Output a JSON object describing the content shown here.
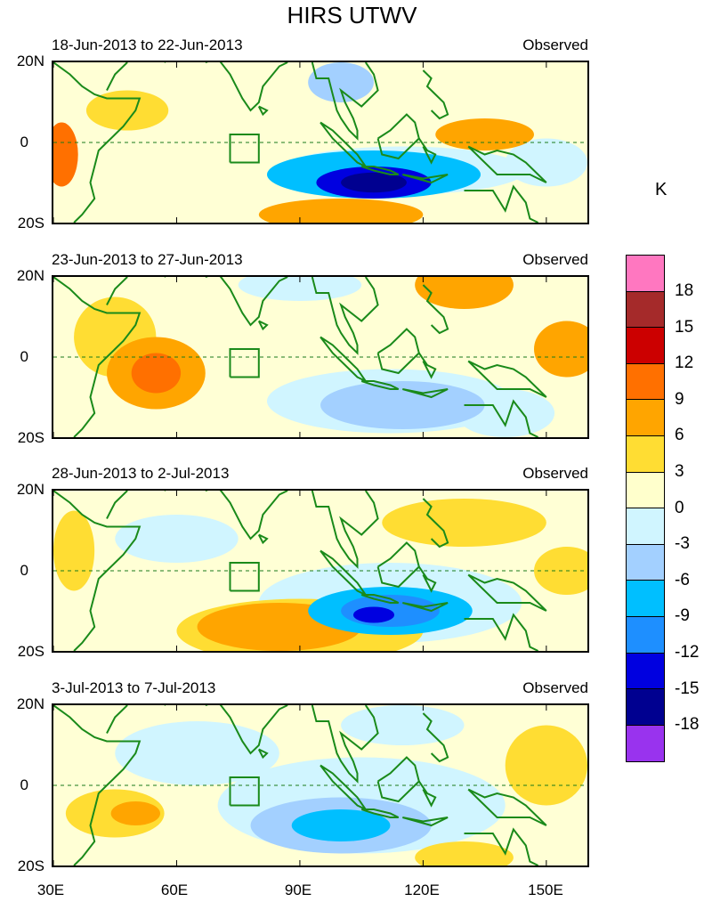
{
  "title": "HIRS UTWV",
  "unit": "K",
  "panels": [
    {
      "date_range": "18-Jun-2013 to 22-Jun-2013",
      "label": "Observed",
      "blobs": [
        {
          "cx": 108,
          "cy": -10,
          "rx": 14,
          "ry": 4,
          "v": -15
        },
        {
          "cx": 108,
          "cy": -10,
          "rx": 8,
          "ry": 2.5,
          "v": -18
        },
        {
          "cx": 108,
          "cy": -8,
          "rx": 26,
          "ry": 6,
          "v": -9
        },
        {
          "cx": 115,
          "cy": -7,
          "rx": 30,
          "ry": 6,
          "v": -3
        },
        {
          "cx": 100,
          "cy": 15,
          "rx": 8,
          "ry": 5,
          "v": -6
        },
        {
          "cx": 135,
          "cy": 2,
          "rx": 12,
          "ry": 4,
          "v": 6
        },
        {
          "cx": 100,
          "cy": -18,
          "rx": 20,
          "ry": 4,
          "v": 6
        },
        {
          "cx": 32,
          "cy": -3,
          "rx": 4,
          "ry": 8,
          "v": 9
        },
        {
          "cx": 48,
          "cy": 8,
          "rx": 10,
          "ry": 5,
          "v": 3
        },
        {
          "cx": 150,
          "cy": -5,
          "rx": 10,
          "ry": 6,
          "v": -3
        }
      ]
    },
    {
      "date_range": "23-Jun-2013 to 27-Jun-2013",
      "label": "Observed",
      "blobs": [
        {
          "cx": 55,
          "cy": -4,
          "rx": 12,
          "ry": 9,
          "v": 6
        },
        {
          "cx": 55,
          "cy": -4,
          "rx": 6,
          "ry": 5,
          "v": 9
        },
        {
          "cx": 45,
          "cy": 5,
          "rx": 10,
          "ry": 10,
          "v": 3
        },
        {
          "cx": 155,
          "cy": 2,
          "rx": 8,
          "ry": 7,
          "v": 6
        },
        {
          "cx": 130,
          "cy": 18,
          "rx": 12,
          "ry": 6,
          "v": 6
        },
        {
          "cx": 115,
          "cy": -12,
          "rx": 20,
          "ry": 6,
          "v": -6
        },
        {
          "cx": 112,
          "cy": -11,
          "rx": 30,
          "ry": 8,
          "v": -3
        },
        {
          "cx": 140,
          "cy": -14,
          "rx": 12,
          "ry": 6,
          "v": -3
        },
        {
          "cx": 90,
          "cy": 18,
          "rx": 15,
          "ry": 4,
          "v": -3
        }
      ]
    },
    {
      "date_range": "28-Jun-2013 to 2-Jul-2013",
      "label": "Observed",
      "blobs": [
        {
          "cx": 112,
          "cy": -10,
          "rx": 20,
          "ry": 6,
          "v": -9
        },
        {
          "cx": 112,
          "cy": -10,
          "rx": 12,
          "ry": 4,
          "v": -12
        },
        {
          "cx": 108,
          "cy": -11,
          "rx": 5,
          "ry": 2,
          "v": -15
        },
        {
          "cx": 112,
          "cy": -8,
          "rx": 32,
          "ry": 10,
          "v": -3
        },
        {
          "cx": 85,
          "cy": -14,
          "rx": 20,
          "ry": 6,
          "v": 6
        },
        {
          "cx": 90,
          "cy": -15,
          "rx": 30,
          "ry": 8,
          "v": 3
        },
        {
          "cx": 60,
          "cy": 8,
          "rx": 15,
          "ry": 6,
          "v": -3
        },
        {
          "cx": 130,
          "cy": 12,
          "rx": 20,
          "ry": 6,
          "v": 3
        },
        {
          "cx": 155,
          "cy": 0,
          "rx": 8,
          "ry": 6,
          "v": 3
        },
        {
          "cx": 35,
          "cy": 5,
          "rx": 5,
          "ry": 10,
          "v": 3
        }
      ]
    },
    {
      "date_range": "3-Jul-2013 to 7-Jul-2013",
      "label": "Observed",
      "blobs": [
        {
          "cx": 100,
          "cy": -10,
          "rx": 22,
          "ry": 7,
          "v": -6
        },
        {
          "cx": 100,
          "cy": -10,
          "rx": 12,
          "ry": 4,
          "v": -9
        },
        {
          "cx": 105,
          "cy": -5,
          "rx": 35,
          "ry": 12,
          "v": -3
        },
        {
          "cx": 65,
          "cy": 8,
          "rx": 20,
          "ry": 8,
          "v": -3
        },
        {
          "cx": 45,
          "cy": -7,
          "rx": 12,
          "ry": 6,
          "v": 3
        },
        {
          "cx": 50,
          "cy": -7,
          "rx": 6,
          "ry": 3,
          "v": 6
        },
        {
          "cx": 150,
          "cy": 5,
          "rx": 10,
          "ry": 10,
          "v": 3
        },
        {
          "cx": 130,
          "cy": -18,
          "rx": 12,
          "ry": 4,
          "v": 3
        },
        {
          "cx": 115,
          "cy": 15,
          "rx": 15,
          "ry": 5,
          "v": -3
        }
      ]
    }
  ],
  "y_ticks": [
    "20N",
    "0",
    "20S"
  ],
  "x_ticks": [
    "30E",
    "60E",
    "90E",
    "120E",
    "150E"
  ],
  "colorbar": {
    "labels": [
      "18",
      "15",
      "12",
      "9",
      "6",
      "3",
      "0",
      "-3",
      "-6",
      "-9",
      "-12",
      "-15",
      "-18"
    ],
    "colors": [
      "#ff77c0",
      "#a52a2a",
      "#cc0000",
      "#ff7000",
      "#ffa500",
      "#ffdd33",
      "#ffffcc",
      "#d0f5ff",
      "#a3d0ff",
      "#00bfff",
      "#1e8fff",
      "#0000e0",
      "#000090",
      "#9933ee"
    ]
  }
}
